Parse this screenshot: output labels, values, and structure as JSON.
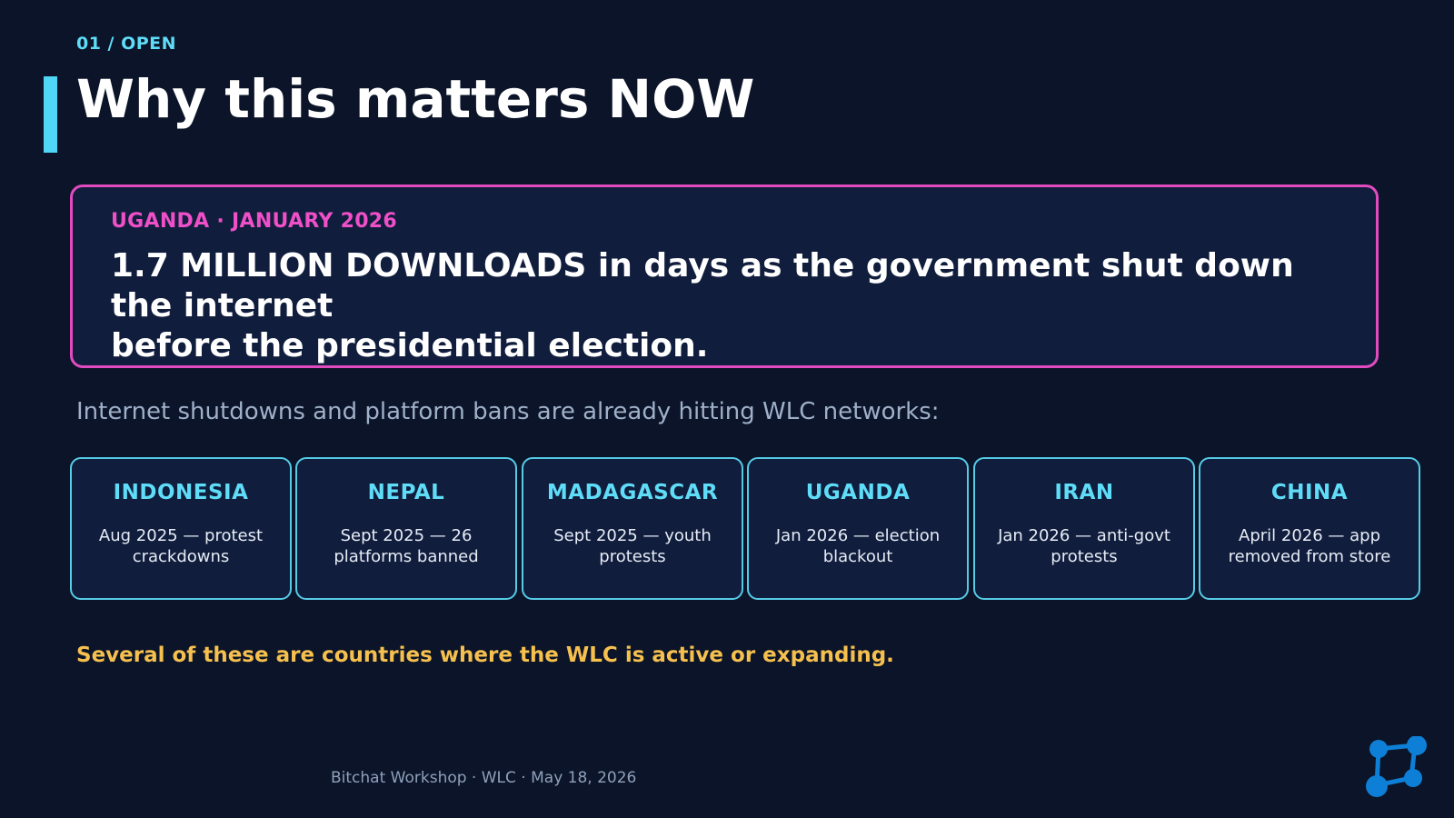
{
  "slide": {
    "kicker": "01 / OPEN",
    "title": "Why this matters NOW"
  },
  "callout": {
    "kicker": "UGANDA · JANUARY 2026",
    "headline_line1": "1.7 MILLION DOWNLOADS in days as the government shut down the internet",
    "headline_line2": "before the presidential election."
  },
  "intro": "Internet shutdowns and platform bans are already hitting WLC networks:",
  "cards": [
    {
      "country": "INDONESIA",
      "event": "Aug 2025 — protest crackdowns"
    },
    {
      "country": "NEPAL",
      "event": "Sept 2025 — 26 platforms banned"
    },
    {
      "country": "MADAGASCAR",
      "event": "Sept 2025 — youth protests"
    },
    {
      "country": "UGANDA",
      "event": "Jan 2026 — election blackout"
    },
    {
      "country": "IRAN",
      "event": "Jan 2026 — anti-govt protests"
    },
    {
      "country": "CHINA",
      "event": "April 2026 — app removed from store"
    }
  ],
  "note": "Several of these are countries where the WLC is active or expanding.",
  "footer": "Bitchat Workshop · WLC · May 18, 2026",
  "logo": {
    "icon": "network-nodes-icon",
    "color": "#0d7fd6"
  },
  "colors": {
    "background": "#0b1428",
    "accent_cyan": "#5fdcf7",
    "accent_pink": "#ef4fc7",
    "accent_gold": "#f6c04e"
  }
}
